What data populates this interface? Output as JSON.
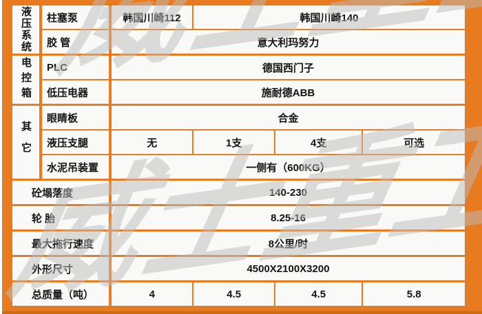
{
  "colors": {
    "accent_orange": "#e87b1f",
    "frame_dark_edge": "#cd6a12",
    "cell_background": "#f9f9f7",
    "watermark_gray": "#bcbcbc"
  },
  "watermark": {
    "text": "威士重工"
  },
  "groups": {
    "hydraulic": "液压系统",
    "electric": "电控箱",
    "other": "其它"
  },
  "rows": {
    "pump": {
      "label": "柱塞泵",
      "v1": "韩国川崎112",
      "v2": "韩国川崎140"
    },
    "hose": {
      "label": "胶 管",
      "value": "意大利玛努力"
    },
    "plc": {
      "label": "PLC",
      "value": "德国西门子"
    },
    "lowvolt": {
      "label": "低压电器",
      "value": "施耐德ABB"
    },
    "eyeplate": {
      "label": "眼睛板",
      "value": "合金"
    },
    "legs": {
      "label": "液压支腿",
      "v1": "无",
      "v2": "1支",
      "v3": "4支",
      "v4": "可选"
    },
    "cementhoist": {
      "label": "水泥吊装置",
      "value": "一侧有（600KG）"
    },
    "slump": {
      "label": "砼塌落度",
      "value": "140-230"
    },
    "tire": {
      "label": "轮 胎",
      "value": "8.25-16"
    },
    "towspeed": {
      "label": "最大拖行速度",
      "value": "8公里/时"
    },
    "dimensions": {
      "label": "外形尺寸",
      "value": "4500X2100X3200"
    },
    "mass": {
      "label": "总质量（吨）",
      "v1": "4",
      "v2": "4.5",
      "v3": "4.5",
      "v4": "5.8"
    }
  }
}
